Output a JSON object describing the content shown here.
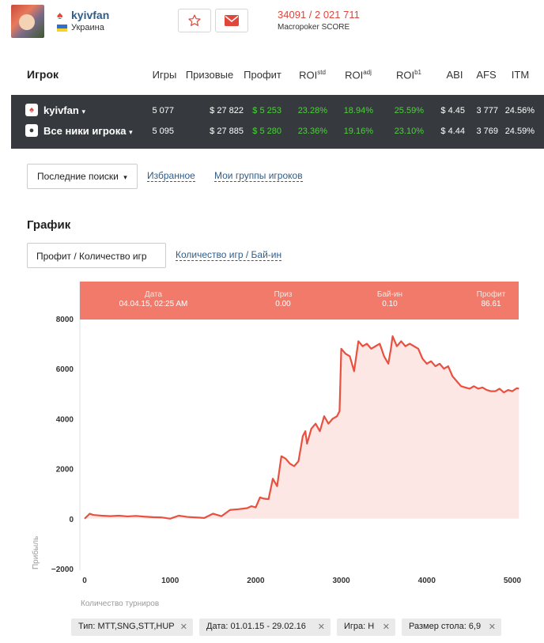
{
  "header": {
    "username": "kyivfan",
    "country": "Украина",
    "score": "34091 / 2 021 711",
    "score_label": "Macropoker SCORE"
  },
  "stats": {
    "title": "Игрок",
    "columns": [
      "Игры",
      "Призовые",
      "Профит",
      "ROI",
      "ROI",
      "ROI",
      "ABI",
      "AFS",
      "ITM"
    ],
    "roi_sups": [
      "std",
      "adj",
      "b1"
    ],
    "rows": [
      {
        "name": "kyivfan",
        "games": "5 077",
        "prize": "$ 27 822",
        "profit": "$ 5 253",
        "roi_std": "23.28%",
        "roi_adj": "18.94%",
        "roi_b1": "25.59%",
        "abi": "$ 4.45",
        "afs": "3 777",
        "itm": "24.56%"
      },
      {
        "name": "Все ники игрока",
        "games": "5 095",
        "prize": "$ 27 885",
        "profit": "$ 5 280",
        "roi_std": "23.36%",
        "roi_adj": "19.16%",
        "roi_b1": "23.10%",
        "abi": "$ 4.44",
        "afs": "3 769",
        "itm": "24.59%"
      }
    ]
  },
  "tabs": {
    "recent_searches": "Последние поиски",
    "favorites": "Избранное",
    "my_groups": "Мои группы игроков"
  },
  "chart_section": {
    "title": "График",
    "tab_active": "Профит / Количество игр",
    "tab_other": "Количество игр / Бай-ин"
  },
  "tooltip": {
    "date_label": "Дата",
    "date_value": "04.04.15, 02:25 AM",
    "prize_label": "Приз",
    "prize_value": "0.00",
    "buyin_label": "Бай-ин",
    "buyin_value": "0.10",
    "profit_label": "Профит",
    "profit_value": "86.61"
  },
  "chart_data": {
    "type": "area",
    "xlabel": "Количество турниров",
    "ylabel": "Прибыль",
    "xlim": [
      0,
      5100
    ],
    "ylim": [
      -2000,
      8200
    ],
    "xticks": [
      0,
      1000,
      2000,
      3000,
      4000,
      5000
    ],
    "yticks": [
      -2000,
      0,
      2000,
      4000,
      6000,
      8000
    ],
    "x": [
      0,
      60,
      100,
      200,
      300,
      400,
      500,
      600,
      700,
      800,
      900,
      1000,
      1100,
      1200,
      1300,
      1400,
      1500,
      1600,
      1700,
      1800,
      1900,
      1950,
      2000,
      2050,
      2100,
      2150,
      2200,
      2250,
      2300,
      2350,
      2400,
      2450,
      2500,
      2550,
      2580,
      2600,
      2650,
      2700,
      2750,
      2800,
      2850,
      2900,
      2950,
      2980,
      3000,
      3050,
      3100,
      3150,
      3200,
      3250,
      3300,
      3350,
      3400,
      3450,
      3500,
      3550,
      3580,
      3600,
      3650,
      3700,
      3750,
      3800,
      3850,
      3900,
      3950,
      4000,
      4050,
      4100,
      4150,
      4200,
      4250,
      4300,
      4350,
      4400,
      4450,
      4500,
      4550,
      4600,
      4650,
      4700,
      4750,
      4800,
      4850,
      4900,
      4950,
      5000,
      5050,
      5077
    ],
    "values": [
      0,
      200,
      150,
      120,
      100,
      120,
      90,
      110,
      80,
      60,
      50,
      0,
      120,
      70,
      50,
      30,
      200,
      100,
      350,
      380,
      420,
      500,
      450,
      850,
      800,
      780,
      1600,
      1300,
      2500,
      2400,
      2200,
      2100,
      2300,
      3300,
      3500,
      3000,
      3600,
      3800,
      3500,
      4100,
      3800,
      4000,
      4100,
      4300,
      6800,
      6600,
      6500,
      5900,
      7100,
      6900,
      7000,
      6800,
      6900,
      7000,
      6500,
      6200,
      6800,
      7300,
      6900,
      7100,
      6900,
      7000,
      6900,
      6800,
      6400,
      6200,
      6300,
      6100,
      6200,
      6000,
      6100,
      5700,
      5500,
      5300,
      5250,
      5200,
      5300,
      5200,
      5250,
      5150,
      5100,
      5100,
      5200,
      5050,
      5150,
      5100,
      5220,
      5200
    ],
    "line_color": "#e8503f",
    "fill_color": "#fde7e4",
    "grid": false
  },
  "filters": [
    {
      "label": "Тип: MTT,SNG,STT,HUP"
    },
    {
      "label": "Дата: 01.01.15 - 29.02.16"
    },
    {
      "label": "Игра: Н"
    },
    {
      "label": "Размер стола: 6,9"
    }
  ]
}
